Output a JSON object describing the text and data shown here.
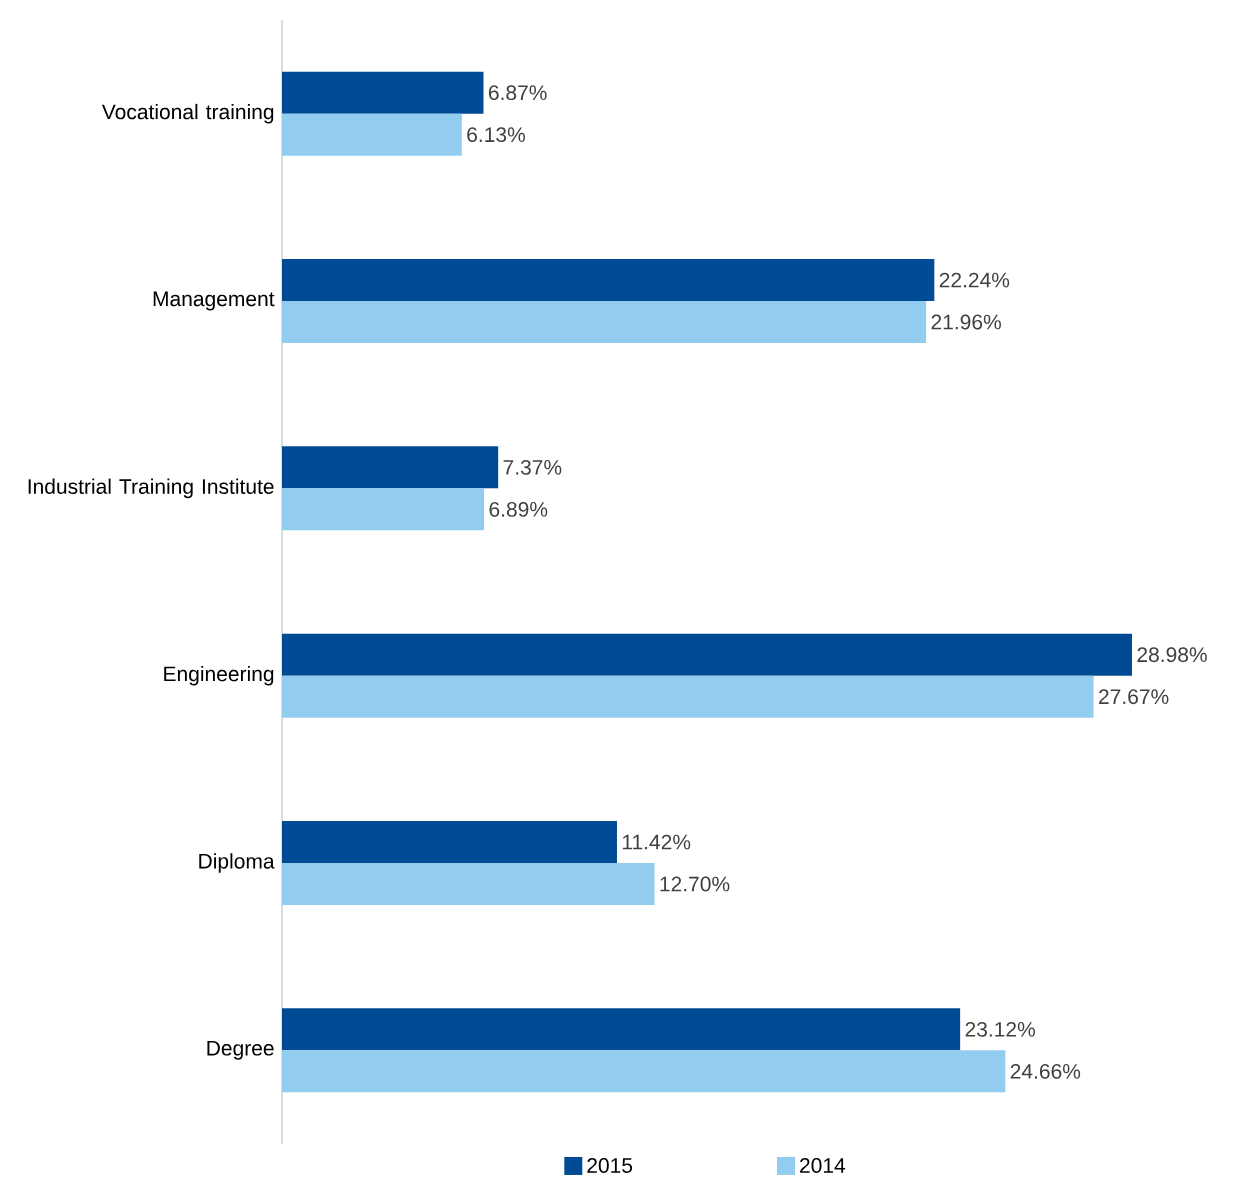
{
  "chart_data": {
    "type": "bar",
    "orientation": "horizontal",
    "categories": [
      "Vocational training",
      "Management",
      "Industrial Training Institute",
      "Engineering",
      "Diploma",
      "Degree"
    ],
    "series": [
      {
        "name": "2015",
        "color": "#004b93",
        "values": [
          6.87,
          22.24,
          7.37,
          28.98,
          11.42,
          23.12
        ],
        "value_labels": [
          "6.87%",
          "22.24%",
          "7.37%",
          "28.98%",
          "11.42%",
          "23.12%"
        ]
      },
      {
        "name": "2014",
        "color": "#92cdf0",
        "values": [
          6.13,
          21.96,
          6.89,
          27.67,
          12.7,
          24.66
        ],
        "value_labels": [
          "6.13%",
          "21.96%",
          "6.89%",
          "27.67%",
          "12.70%",
          "24.66%"
        ]
      }
    ],
    "tick_labels": "y",
    "legend": "bottom"
  }
}
